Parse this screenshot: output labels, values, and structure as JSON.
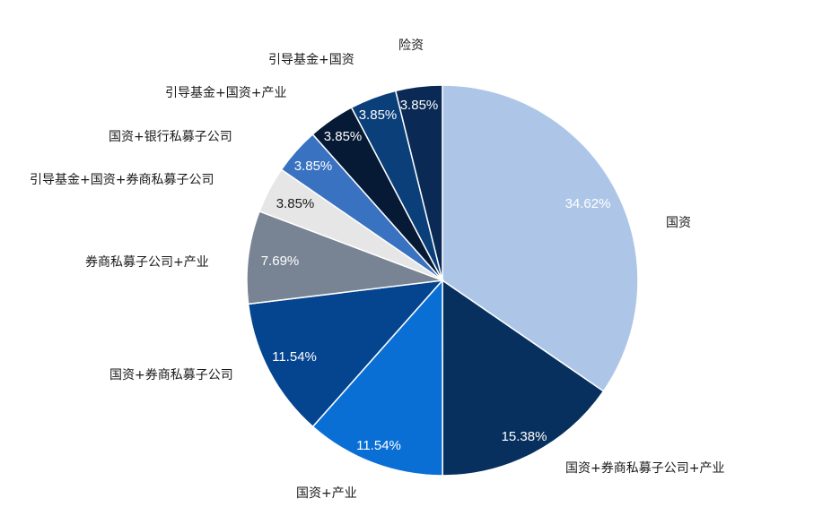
{
  "chart_data": {
    "type": "pie",
    "title": "",
    "start_angle_deg": 0,
    "direction": "clockwise",
    "categories": [
      "国资",
      "国资+券商私募子公司+产业",
      "国资+产业",
      "国资+券商私募子公司",
      "券商私募子公司+产业",
      "引导基金+国资+券商私募子公司",
      "国资+银行私募子公司",
      "引导基金+国资+产业",
      "引导基金+国资",
      "险资"
    ],
    "values": [
      34.62,
      15.38,
      11.54,
      11.54,
      7.69,
      3.85,
      3.85,
      3.85,
      3.85,
      3.85
    ],
    "value_labels": [
      "34.62%",
      "15.38%",
      "11.54%",
      "11.54%",
      "7.69%",
      "3.85%",
      "3.85%",
      "3.85%",
      "3.85%",
      "3.85%"
    ],
    "colors": [
      "#adc6e8",
      "#07305e",
      "#0a6fd5",
      "#05458f",
      "#788494",
      "#e6e6e6",
      "#3a72c2",
      "#061a35",
      "#0b3f7a",
      "#0a2a55"
    ],
    "label_colors": [
      "#ffffff",
      "#ffffff",
      "#ffffff",
      "#ffffff",
      "#ffffff",
      "#1a1a1a",
      "#ffffff",
      "#ffffff",
      "#ffffff",
      "#ffffff"
    ],
    "legend": "none (category labels beside slices)"
  }
}
